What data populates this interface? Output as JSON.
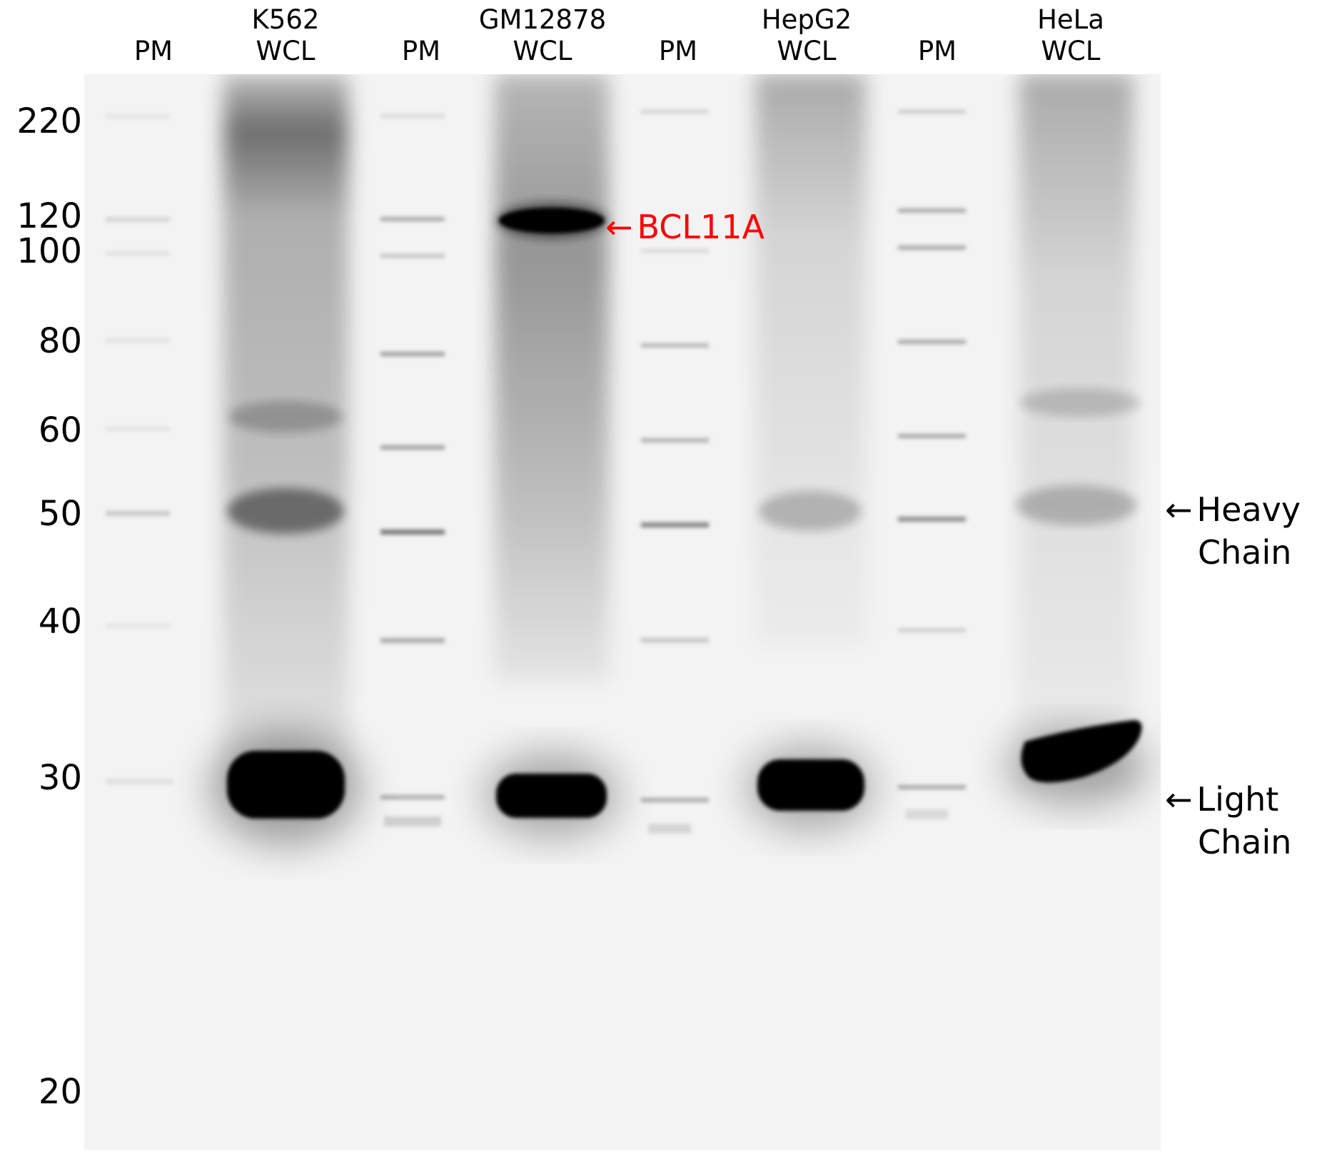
{
  "lanes": [
    {
      "line1": "",
      "line2": "PM",
      "kind": "marker"
    },
    {
      "line1": "K562",
      "line2": "WCL",
      "kind": "sample"
    },
    {
      "line1": "",
      "line2": "PM",
      "kind": "marker"
    },
    {
      "line1": "GM12878",
      "line2": "WCL",
      "kind": "sample"
    },
    {
      "line1": "",
      "line2": "PM",
      "kind": "marker"
    },
    {
      "line1": "HepG2",
      "line2": "WCL",
      "kind": "sample"
    },
    {
      "line1": "",
      "line2": "PM",
      "kind": "marker"
    },
    {
      "line1": "HeLa",
      "line2": "WCL",
      "kind": "sample"
    }
  ],
  "markers": [
    "220",
    "120",
    "100",
    "80",
    "60",
    "50",
    "40",
    "30",
    "20"
  ],
  "annotations": {
    "bcl11a": {
      "arrow": "←",
      "text": "BCL11A",
      "color": "#ff0000"
    },
    "heavy": {
      "arrow": "←",
      "line1": "Heavy",
      "line2": "Chain"
    },
    "light": {
      "arrow": "←",
      "line1": "Light",
      "line2": "Chain"
    }
  },
  "colors": {
    "membrane": "#f3f3f3",
    "band": "#000000",
    "label_red": "#ff0000"
  }
}
